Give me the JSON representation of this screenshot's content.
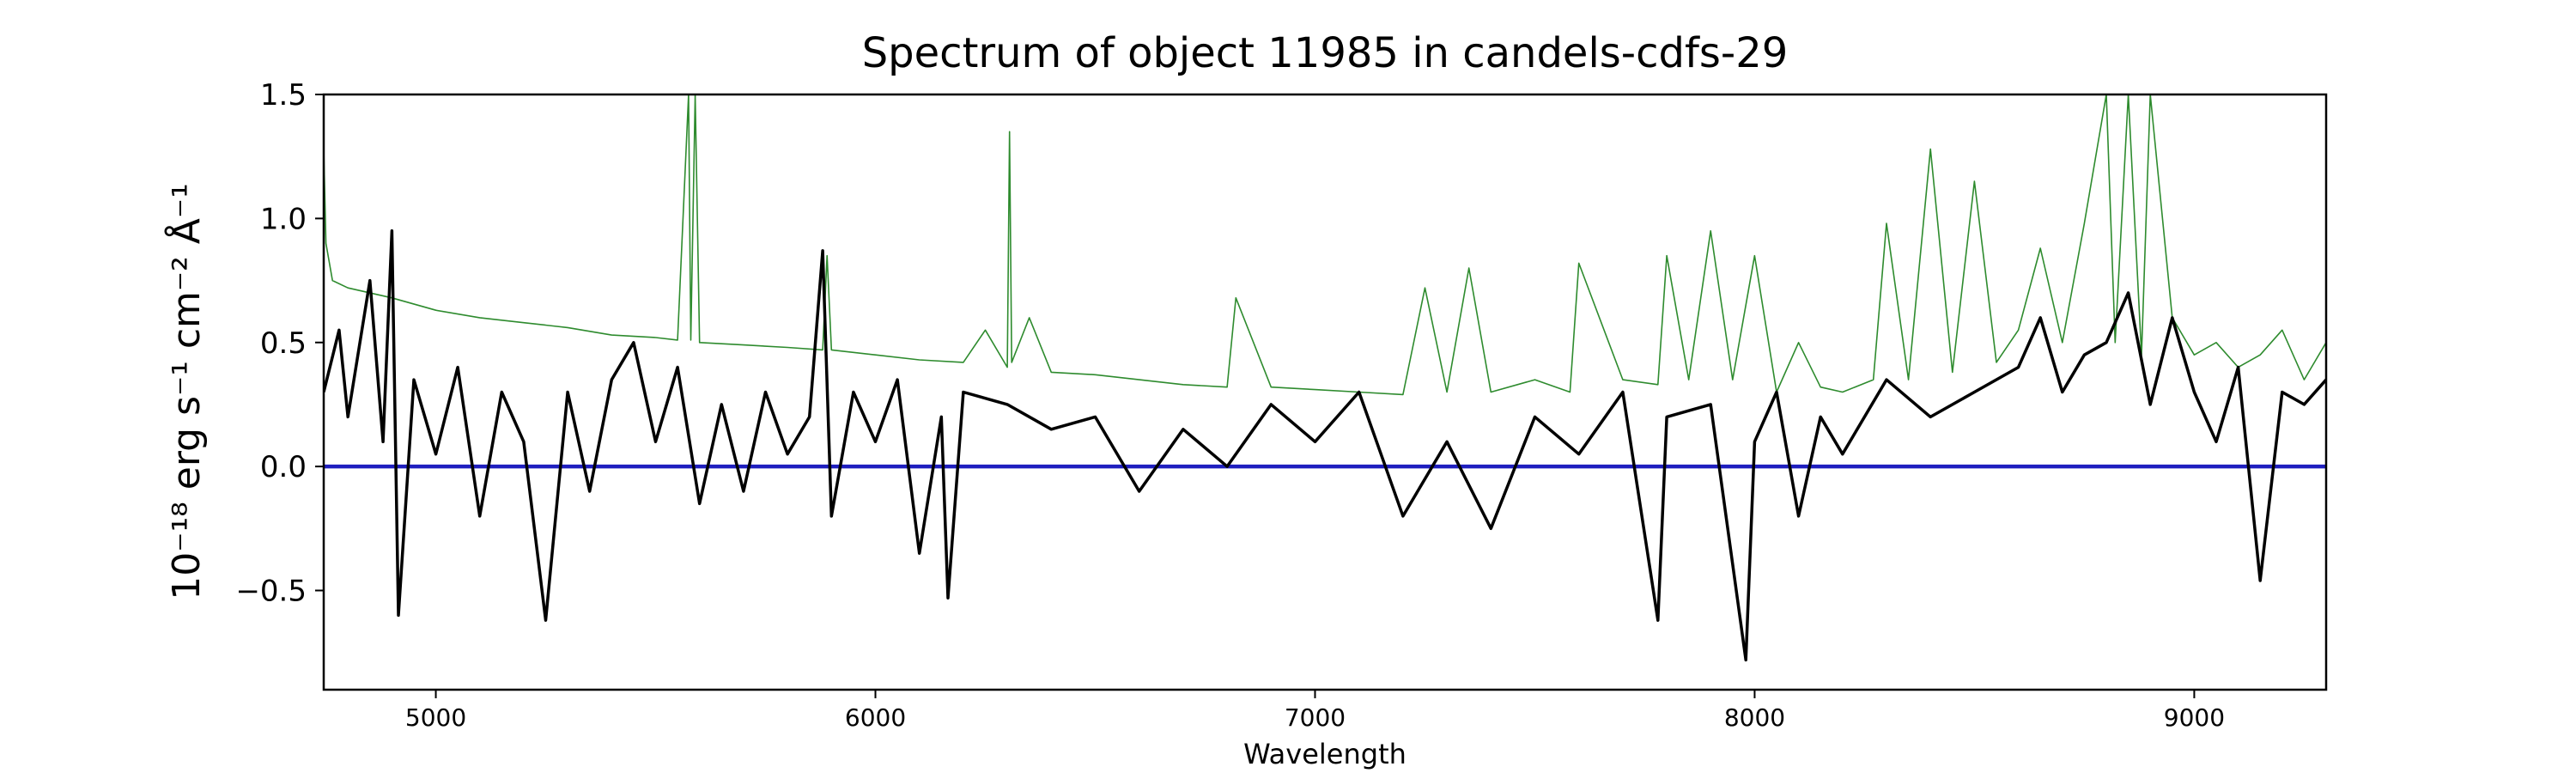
{
  "chart_data": {
    "type": "line",
    "title": "Spectrum of object 11985 in candels-cdfs-29",
    "xlabel": "Wavelength",
    "ylabel": "10⁻¹⁸ erg s⁻¹ cm⁻² Å⁻¹",
    "xlim": [
      4745,
      9300
    ],
    "ylim": [
      -0.9,
      1.5
    ],
    "grid": false,
    "x_ticks": [
      5000,
      6000,
      7000,
      8000,
      9000
    ],
    "x_tick_labels": [
      "5000",
      "6000",
      "7000",
      "8000",
      "9000"
    ],
    "y_ticks": [
      -0.5,
      0.0,
      0.5,
      1.0,
      1.5
    ],
    "y_tick_labels": [
      "−0.5",
      "0.0",
      "0.5",
      "1.0",
      "1.5"
    ],
    "series": [
      {
        "role": "flux",
        "color": "#000000",
        "x": [
          4745,
          4780,
          4800,
          4850,
          4880,
          4900,
          4915,
          4950,
          5000,
          5050,
          5100,
          5150,
          5200,
          5250,
          5300,
          5350,
          5400,
          5450,
          5500,
          5550,
          5600,
          5650,
          5700,
          5750,
          5800,
          5850,
          5880,
          5900,
          5950,
          6000,
          6050,
          6100,
          6150,
          6165,
          6200,
          6300,
          6400,
          6500,
          6600,
          6700,
          6800,
          6900,
          7000,
          7100,
          7200,
          7300,
          7400,
          7500,
          7600,
          7700,
          7780,
          7800,
          7900,
          7980,
          8000,
          8050,
          8100,
          8150,
          8200,
          8300,
          8400,
          8500,
          8600,
          8650,
          8700,
          8750,
          8800,
          8850,
          8900,
          8950,
          9000,
          9050,
          9100,
          9150,
          9200,
          9250,
          9300
        ],
        "y": [
          0.3,
          0.55,
          0.2,
          0.75,
          0.1,
          0.95,
          -0.6,
          0.35,
          0.05,
          0.4,
          -0.2,
          0.3,
          0.1,
          -0.62,
          0.3,
          -0.1,
          0.35,
          0.5,
          0.1,
          0.4,
          -0.15,
          0.25,
          -0.1,
          0.3,
          0.05,
          0.2,
          0.87,
          -0.2,
          0.3,
          0.1,
          0.35,
          -0.35,
          0.2,
          -0.53,
          0.3,
          0.25,
          0.15,
          0.2,
          -0.1,
          0.15,
          0.0,
          0.25,
          0.1,
          0.3,
          -0.2,
          0.1,
          -0.25,
          0.2,
          0.05,
          0.3,
          -0.62,
          0.2,
          0.25,
          -0.78,
          0.1,
          0.3,
          -0.2,
          0.2,
          0.05,
          0.35,
          0.2,
          0.3,
          0.4,
          0.6,
          0.3,
          0.45,
          0.5,
          0.7,
          0.25,
          0.6,
          0.3,
          0.1,
          0.4,
          -0.46,
          0.3,
          0.25,
          0.35
        ]
      },
      {
        "role": "noise",
        "color": "#2e8b2e",
        "x": [
          4745,
          4750,
          4765,
          4800,
          4900,
          5000,
          5100,
          5200,
          5300,
          5400,
          5500,
          5550,
          5575,
          5580,
          5590,
          5600,
          5700,
          5800,
          5880,
          5890,
          5900,
          6000,
          6100,
          6200,
          6250,
          6300,
          6305,
          6310,
          6350,
          6400,
          6500,
          6600,
          6700,
          6800,
          6820,
          6900,
          7000,
          7100,
          7200,
          7250,
          7300,
          7350,
          7400,
          7500,
          7580,
          7600,
          7700,
          7780,
          7800,
          7850,
          7900,
          7950,
          8000,
          8050,
          8100,
          8150,
          8200,
          8270,
          8300,
          8350,
          8400,
          8450,
          8500,
          8550,
          8600,
          8650,
          8700,
          8750,
          8800,
          8820,
          8850,
          8880,
          8900,
          8950,
          9000,
          9050,
          9100,
          9150,
          9200,
          9250,
          9300
        ],
        "y": [
          1.28,
          0.9,
          0.75,
          0.72,
          0.68,
          0.63,
          0.6,
          0.58,
          0.56,
          0.53,
          0.52,
          0.51,
          1.5,
          0.51,
          1.5,
          0.5,
          0.49,
          0.48,
          0.47,
          0.85,
          0.47,
          0.45,
          0.43,
          0.42,
          0.55,
          0.4,
          1.35,
          0.42,
          0.6,
          0.38,
          0.37,
          0.35,
          0.33,
          0.32,
          0.68,
          0.32,
          0.31,
          0.3,
          0.29,
          0.72,
          0.3,
          0.8,
          0.3,
          0.35,
          0.3,
          0.82,
          0.35,
          0.33,
          0.85,
          0.35,
          0.95,
          0.35,
          0.85,
          0.3,
          0.5,
          0.32,
          0.3,
          0.35,
          0.98,
          0.35,
          1.28,
          0.38,
          1.15,
          0.42,
          0.55,
          0.88,
          0.5,
          0.98,
          1.5,
          0.5,
          1.5,
          0.45,
          1.5,
          0.6,
          0.45,
          0.5,
          0.4,
          0.45,
          0.55,
          0.35,
          0.5
        ]
      },
      {
        "role": "zero",
        "color": "#1f1fbf",
        "x": [
          4745,
          9300
        ],
        "y": [
          0.0,
          0.0
        ]
      }
    ]
  }
}
